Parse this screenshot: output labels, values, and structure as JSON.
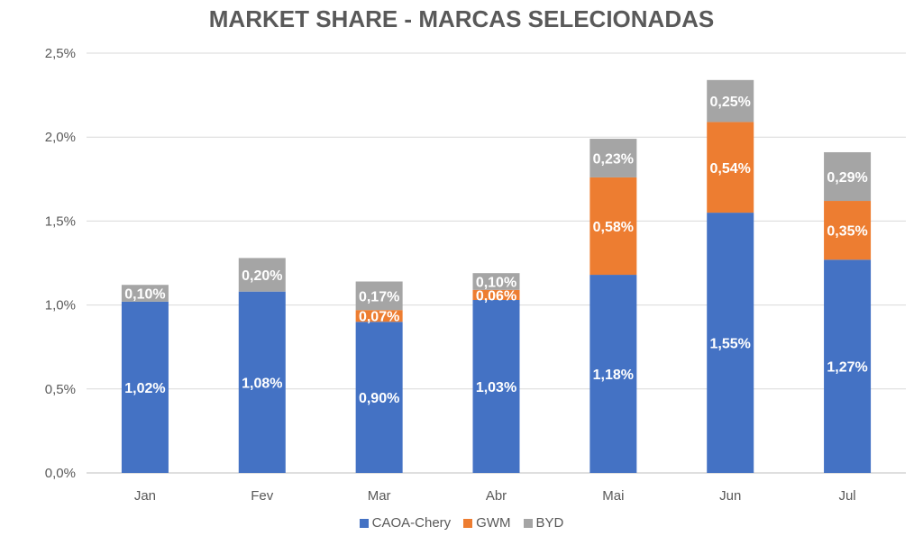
{
  "chart_data": {
    "type": "bar",
    "stacked": true,
    "title": "MARKET SHARE - MARCAS SELECIONADAS",
    "categories": [
      "Jan",
      "Fev",
      "Mar",
      "Abr",
      "Mai",
      "Jun",
      "Jul"
    ],
    "ylim": [
      0,
      2.5
    ],
    "yticks": [
      "0,0%",
      "0,5%",
      "1,0%",
      "1,5%",
      "2,0%",
      "2,5%"
    ],
    "grid": true,
    "legend_position": "bottom",
    "series": [
      {
        "name": "CAOA-Chery",
        "color": "#4472C4",
        "values": [
          1.02,
          1.08,
          0.9,
          1.03,
          1.18,
          1.55,
          1.27
        ],
        "labels": [
          "1,02%",
          "1,08%",
          "0,90%",
          "1,03%",
          "1,18%",
          "1,55%",
          "1,27%"
        ]
      },
      {
        "name": "GWM",
        "color": "#ED7D31",
        "values": [
          null,
          null,
          0.07,
          0.06,
          0.58,
          0.54,
          0.35
        ],
        "labels": [
          "",
          "",
          "0,07%",
          "0,06%",
          "0,58%",
          "0,54%",
          "0,35%"
        ]
      },
      {
        "name": "BYD",
        "color": "#A5A5A5",
        "values": [
          0.1,
          0.2,
          0.17,
          0.1,
          0.23,
          0.25,
          0.29
        ],
        "labels": [
          "0,10%",
          "0,20%",
          "0,17%",
          "0,10%",
          "0,23%",
          "0,25%",
          "0,29%"
        ]
      }
    ]
  }
}
